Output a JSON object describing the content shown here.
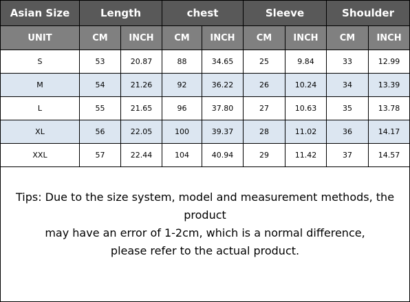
{
  "header": [
    "Asian Size",
    "Length",
    "chest",
    "Sleeve",
    "Shoulder"
  ],
  "units": [
    "UNIT",
    "CM",
    "INCH",
    "CM",
    "INCH",
    "CM",
    "INCH",
    "CM",
    "INCH"
  ],
  "rows": [
    [
      "S",
      "53",
      "20.87",
      "88",
      "34.65",
      "25",
      "9.84",
      "33",
      "12.99"
    ],
    [
      "M",
      "54",
      "21.26",
      "92",
      "36.22",
      "26",
      "10.24",
      "34",
      "13.39"
    ],
    [
      "L",
      "55",
      "21.65",
      "96",
      "37.80",
      "27",
      "10.63",
      "35",
      "13.78"
    ],
    [
      "XL",
      "56",
      "22.05",
      "100",
      "39.37",
      "28",
      "11.02",
      "36",
      "14.17"
    ],
    [
      "XXL",
      "57",
      "22.44",
      "104",
      "40.94",
      "29",
      "11.42",
      "37",
      "14.57"
    ]
  ],
  "tips": [
    "Tips: Due to the size system, model and measurement methods, the product",
    "may have an error of 1-2cm, which is a normal difference,",
    "please refer to the actual product."
  ]
}
